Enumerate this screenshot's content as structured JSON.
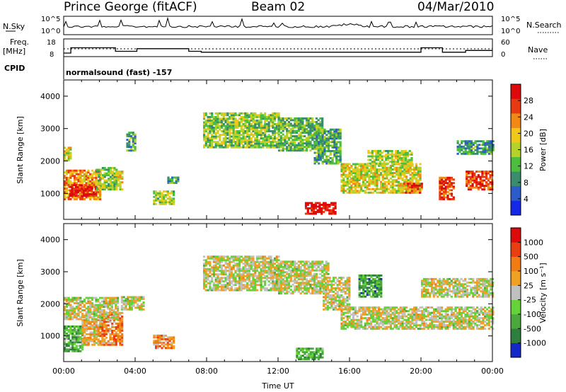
{
  "header": {
    "station": "Prince George (fitACF)",
    "beam": "Beam 02",
    "date": "04/Mar/2010"
  },
  "panels": {
    "nsky_label": "N.Sky",
    "nsearch_label": "N.Search",
    "freq_label": "Freq.",
    "freq_unit": "[MHz]",
    "nave_label": "Nave",
    "cpid_label": "CPID",
    "cpid_text": "normalsound (fast) -157",
    "noise_ticks": [
      "10^5",
      "10^0"
    ],
    "freq_ticks": [
      "18",
      "8"
    ],
    "nave_ticks": [
      "60",
      "0"
    ]
  },
  "chart_data": [
    {
      "type": "heatmap",
      "name": "power",
      "ylabel": "Slant Range [km]",
      "xlabel": "",
      "ylim": [
        200,
        4500
      ],
      "yticks": [
        "1000",
        "2000",
        "3000",
        "4000"
      ],
      "colorbar": {
        "label": "Power [dB]",
        "ticks": [
          "4",
          "8",
          "12",
          "16",
          "20",
          "24",
          "28"
        ],
        "colors": [
          "#1428e6",
          "#2c5cc8",
          "#3a8c6e",
          "#4cbd3c",
          "#b4d22a",
          "#f0c818",
          "#f08a14",
          "#e83a10",
          "#dc0a0a"
        ]
      },
      "regions": [
        {
          "t": [
            0.0,
            2.0
          ],
          "r": [
            800,
            1700
          ],
          "level": 0.7
        },
        {
          "t": [
            0.3,
            1.8
          ],
          "r": [
            900,
            1250
          ],
          "level": 0.92
        },
        {
          "t": [
            0.0,
            0.4
          ],
          "r": [
            2000,
            2400
          ],
          "level": 0.55
        },
        {
          "t": [
            1.8,
            3.0
          ],
          "r": [
            1100,
            1800
          ],
          "level": 0.45
        },
        {
          "t": [
            3.0,
            3.3
          ],
          "r": [
            1100,
            1700
          ],
          "level": 0.6
        },
        {
          "t": [
            3.5,
            4.0
          ],
          "r": [
            2300,
            2900
          ],
          "level": 0.35
        },
        {
          "t": [
            5.0,
            6.2
          ],
          "r": [
            650,
            1050
          ],
          "level": 0.5
        },
        {
          "t": [
            5.8,
            6.4
          ],
          "r": [
            1300,
            1500
          ],
          "level": 0.3
        },
        {
          "t": [
            7.8,
            12.0
          ],
          "r": [
            2400,
            3450
          ],
          "level": 0.45
        },
        {
          "t": [
            12.0,
            14.5
          ],
          "r": [
            2300,
            3300
          ],
          "level": 0.4
        },
        {
          "t": [
            14.0,
            15.5
          ],
          "r": [
            1900,
            3000
          ],
          "level": 0.35
        },
        {
          "t": [
            13.5,
            15.2
          ],
          "r": [
            350,
            700
          ],
          "level": 0.95
        },
        {
          "t": [
            15.5,
            20.0
          ],
          "r": [
            1000,
            1900
          ],
          "level": 0.55
        },
        {
          "t": [
            17.0,
            19.5
          ],
          "r": [
            1900,
            2300
          ],
          "level": 0.5
        },
        {
          "t": [
            19.0,
            20.0
          ],
          "r": [
            1000,
            1300
          ],
          "level": 0.8
        },
        {
          "t": [
            21.0,
            21.8
          ],
          "r": [
            800,
            1500
          ],
          "level": 0.85
        },
        {
          "t": [
            22.5,
            24.0
          ],
          "r": [
            1100,
            1700
          ],
          "level": 0.85
        },
        {
          "t": [
            22.0,
            24.0
          ],
          "r": [
            2200,
            2600
          ],
          "level": 0.3
        }
      ]
    },
    {
      "type": "heatmap",
      "name": "velocity",
      "ylabel": "Slant Range [km]",
      "xlabel": "Time UT",
      "ylim": [
        200,
        4500
      ],
      "xlim": [
        0,
        24
      ],
      "xticks": [
        "00:00",
        "04:00",
        "08:00",
        "12:00",
        "16:00",
        "20:00",
        "00:00"
      ],
      "yticks": [
        "1000",
        "2000",
        "3000",
        "4000"
      ],
      "colorbar": {
        "label": "Velocity [m s⁻¹]",
        "ticks": [
          "1000",
          "500",
          "100",
          "25",
          "-25",
          "-100",
          "-500",
          "-1000"
        ],
        "colors": [
          "#1428c8",
          "#2e7e3e",
          "#4aa83c",
          "#66d23a",
          "#c0c0c0",
          "#f0a024",
          "#f07c14",
          "#e83e10",
          "#dc0a0a"
        ]
      },
      "regions": [
        {
          "t": [
            0.0,
            1.0
          ],
          "r": [
            500,
            1300
          ],
          "level": 0.32
        },
        {
          "t": [
            1.0,
            2.0
          ],
          "r": [
            700,
            1500
          ],
          "level": 0.58
        },
        {
          "t": [
            2.0,
            3.3
          ],
          "r": [
            700,
            1700
          ],
          "level": 0.7
        },
        {
          "t": [
            0.0,
            3.0
          ],
          "r": [
            1500,
            2200
          ],
          "level": 0.5
        },
        {
          "t": [
            3.2,
            4.5
          ],
          "r": [
            1800,
            2200
          ],
          "level": 0.5
        },
        {
          "t": [
            5.0,
            6.2
          ],
          "r": [
            600,
            1000
          ],
          "level": 0.66
        },
        {
          "t": [
            7.8,
            12.0
          ],
          "r": [
            2400,
            3450
          ],
          "level": 0.5
        },
        {
          "t": [
            12.0,
            14.8
          ],
          "r": [
            2300,
            3300
          ],
          "level": 0.5
        },
        {
          "t": [
            14.5,
            16.0
          ],
          "r": [
            1800,
            2800
          ],
          "level": 0.5
        },
        {
          "t": [
            16.5,
            17.8
          ],
          "r": [
            2200,
            2900
          ],
          "level": 0.25
        },
        {
          "t": [
            15.5,
            24.0
          ],
          "r": [
            1200,
            1900
          ],
          "level": 0.5
        },
        {
          "t": [
            20.0,
            24.0
          ],
          "r": [
            2200,
            2800
          ],
          "level": 0.5
        },
        {
          "t": [
            13.0,
            14.5
          ],
          "r": [
            250,
            600
          ],
          "level": 0.3
        }
      ]
    }
  ]
}
